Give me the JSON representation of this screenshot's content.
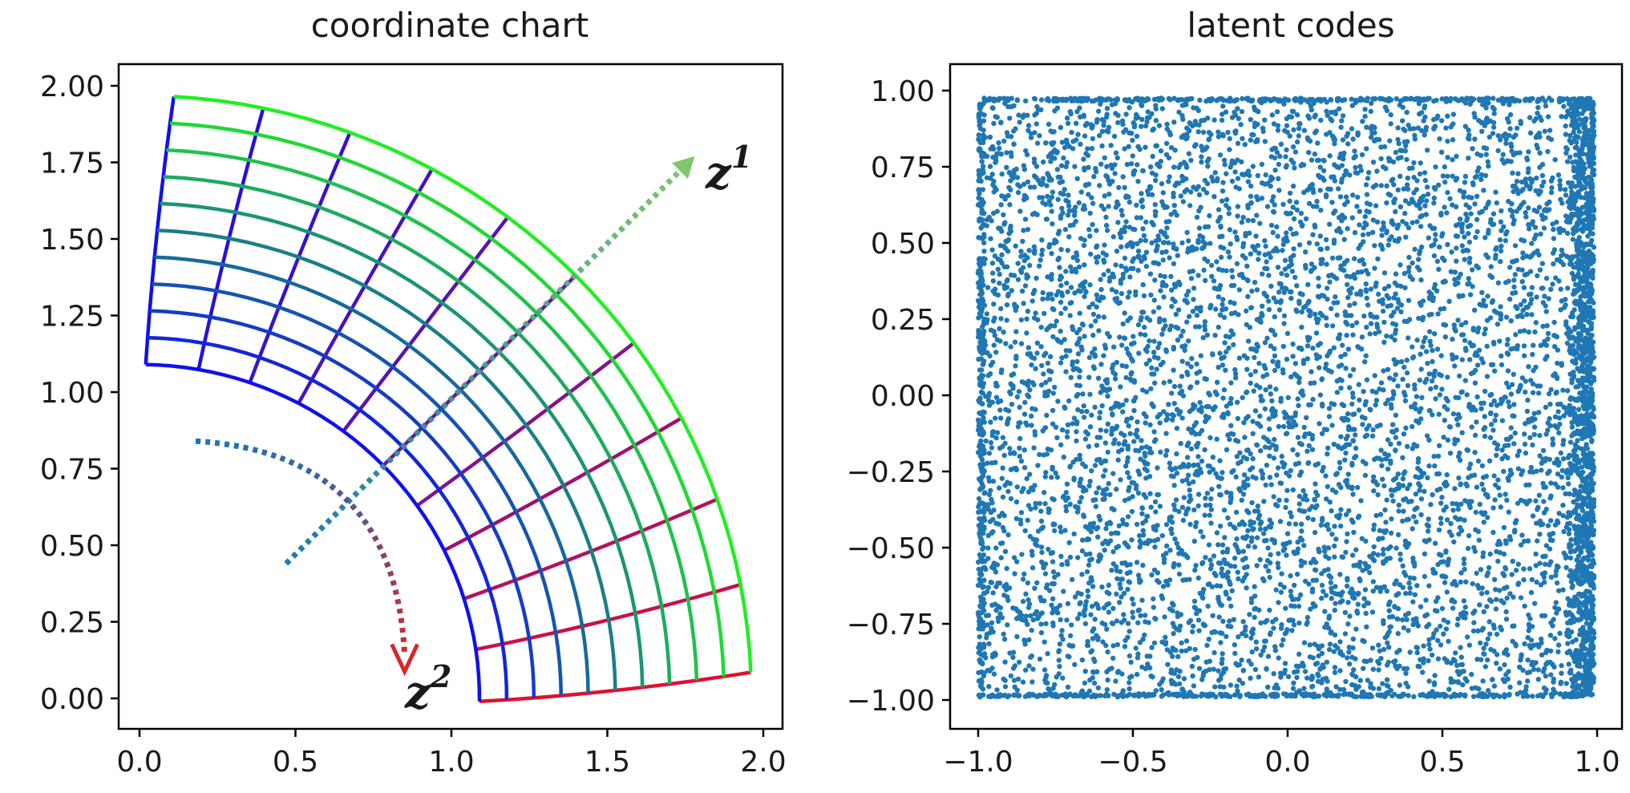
{
  "chart_data": [
    {
      "type": "line",
      "title": "coordinate chart",
      "xlabel": "",
      "ylabel": "",
      "xlim": [
        -0.1,
        2.05
      ],
      "ylim": [
        -0.1,
        2.06
      ],
      "xticks": [
        "0.0",
        "0.5",
        "1.0",
        "1.5",
        "2.0"
      ],
      "yticks": [
        "0.00",
        "0.25",
        "0.50",
        "0.75",
        "1.00",
        "1.25",
        "1.50",
        "1.75",
        "2.00"
      ],
      "grid": false,
      "grid_description": "curved mesh in an annular sector, inner radius ~1.1, outer radius ~1.95; angle from ~2.6 deg (bottom) to ~86 deg (top); colors blend red (z2 direction) to green (z1 direction) through blue",
      "mesh": {
        "inner_radius": 1.09,
        "outer_radius": 1.955,
        "theta_start_deg": 2.6,
        "theta_end_deg": 86.2,
        "radial_divisions": 10,
        "angular_divisions": 10,
        "corners": [
          {
            "x": 0.02,
            "y": 1.09
          },
          {
            "x": 0.11,
            "y": 1.965
          },
          {
            "x": 1.09,
            "y": -0.01
          },
          {
            "x": 1.96,
            "y": 0.085
          }
        ]
      },
      "arrows": [
        {
          "label": "z",
          "superscript": "1",
          "from": [
            0.47,
            0.44
          ],
          "to": [
            1.78,
            1.77
          ],
          "color_start": "#1f77b4",
          "color_end": "#7ed957",
          "style": "dotted"
        },
        {
          "label": "z",
          "superscript": "2",
          "from": [
            0.18,
            0.84
          ],
          "to": [
            0.85,
            0.1
          ],
          "color_start": "#1f77b4",
          "color_end": "#d62728",
          "style": "dotted",
          "curved": true
        }
      ]
    },
    {
      "type": "scatter",
      "title": "latent codes",
      "xlabel": "",
      "ylabel": "",
      "xlim": [
        -1.1,
        1.1
      ],
      "ylim": [
        -1.08,
        1.08
      ],
      "xticks": [
        "−1.0",
        "−0.5",
        "0.0",
        "0.5",
        "1.0"
      ],
      "yticks": [
        "−1.00",
        "−0.75",
        "−0.50",
        "−0.25",
        "0.00",
        "0.25",
        "0.50",
        "0.75",
        "1.00"
      ],
      "grid": false,
      "color": "#1f77b4",
      "points_description": "dense uniform cloud of ~6000 points filling the square [-1,1]x[-0.98,0.98], with a denser band near x = 0.95..0.99",
      "points_count": 6000,
      "x_range": [
        -1.0,
        0.985
      ],
      "y_range": [
        -0.99,
        0.975
      ],
      "dense_band": {
        "x_range": [
          0.9,
          0.99
        ],
        "extra_points": 1200
      }
    }
  ],
  "colors": {
    "scatter": "#1f77b4",
    "red": "#e01030",
    "blue": "#1010ee",
    "green": "#22ee22"
  }
}
